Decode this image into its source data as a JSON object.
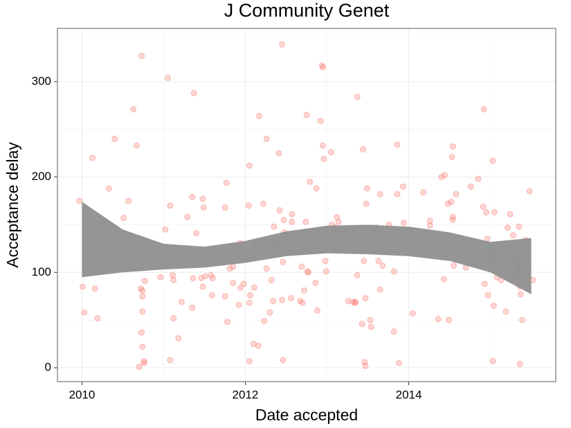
{
  "chart_data": {
    "type": "scatter",
    "title": "J Community Genet",
    "x_label": "Date accepted",
    "y_label": "Acceptance delay",
    "xlim": [
      2009.7,
      2015.8
    ],
    "ylim": [
      -14.5,
      355.8
    ],
    "xticks": [
      2010,
      2012,
      2014
    ],
    "yticks": [
      0,
      100,
      200,
      300
    ],
    "minor_xticks": [
      2011,
      2013,
      2015
    ],
    "minor_yticks": [
      50,
      150,
      250,
      350
    ],
    "grid": true,
    "point_color": "#f8766d",
    "band_color": "#8f8f8f",
    "x": [
      2009.97,
      2010.01,
      2010.03,
      2010.13,
      2010.14,
      2010.16,
      2010.19,
      2010.24,
      2010.33,
      2010.4,
      2010.51,
      2010.57,
      2010.57,
      2010.58,
      2010.63,
      2010.67,
      2010.7,
      2010.73,
      2010.72,
      2010.73,
      2010.74,
      2010.74,
      2010.74,
      2010.74,
      2010.76,
      2010.76,
      2010.77,
      2010.88,
      2010.96,
      2011.02,
      2011.05,
      2011.06,
      2011.08,
      2011.08,
      2011.08,
      2011.11,
      2011.12,
      2011.12,
      2011.18,
      2011.22,
      2011.29,
      2011.35,
      2011.36,
      2011.37,
      2011.35,
      2011.4,
      2011.46,
      2011.48,
      2011.49,
      2011.5,
      2011.48,
      2011.51,
      2011.56,
      2011.58,
      2011.6,
      2011.59,
      2011.75,
      2011.77,
      2011.75,
      2011.78,
      2011.81,
      2011.85,
      2011.85,
      2011.92,
      2011.94,
      2011.94,
      2011.98,
      2012.04,
      2012.05,
      2012.05,
      2012.05,
      2012.06,
      2012.1,
      2012.11,
      2012.12,
      2012.16,
      2012.17,
      2012.22,
      2012.23,
      2012.26,
      2012.26,
      2012.3,
      2012.32,
      2012.34,
      2012.35,
      2012.38,
      2012.39,
      2012.41,
      2012.42,
      2012.45,
      2012.45,
      2012.46,
      2012.46,
      2012.47,
      2012.48,
      2012.54,
      2012.56,
      2012.57,
      2012.57,
      2012.67,
      2012.67,
      2012.69,
      2012.7,
      2012.72,
      2012.74,
      2012.75,
      2012.76,
      2012.77,
      2012.79,
      2012.88,
      2012.86,
      2012.87,
      2012.92,
      2012.94,
      2012.95,
      2012.95,
      2012.96,
      2012.98,
      2012.99,
      2013.05,
      2013.06,
      2013.1,
      2013.11,
      2013.12,
      2013.13,
      2013.14,
      2013.26,
      2013.32,
      2013.33,
      2013.34,
      2013.35,
      2013.37,
      2013.37,
      2013.43,
      2013.44,
      2013.45,
      2013.46,
      2013.47,
      2013.47,
      2013.48,
      2013.49,
      2013.53,
      2013.53,
      2013.54,
      2013.56,
      2013.6,
      2013.6,
      2013.63,
      2013.65,
      2013.65,
      2013.68,
      2013.76,
      2013.82,
      2013.82,
      2013.86,
      2013.86,
      2013.87,
      2013.88,
      2013.93,
      2013.94,
      2013.98,
      2014.02,
      2014.05,
      2014.18,
      2014.18,
      2014.26,
      2014.26,
      2014.36,
      2014.4,
      2014.44,
      2014.43,
      2014.48,
      2014.49,
      2014.52,
      2014.53,
      2014.54,
      2014.54,
      2014.54,
      2014.53,
      2014.55,
      2014.58,
      2014.7,
      2014.76,
      2014.85,
      2014.92,
      2014.91,
      2014.93,
      2014.95,
      2014.96,
      2014.97,
      2015.03,
      2015.03,
      2015.04,
      2015.03,
      2015.05,
      2015.05,
      2015.06,
      2015.08,
      2015.13,
      2015.19,
      2015.19,
      2015.21,
      2015.24,
      2015.25,
      2015.26,
      2015.28,
      2015.29,
      2015.29,
      2015.31,
      2015.32,
      2015.35,
      2015.35,
      2015.35,
      2015.35,
      2015.36,
      2015.36,
      2015.36,
      2015.37,
      2015.39,
      2015.43,
      2015.48,
      2015.52
    ],
    "values": [
      175,
      85,
      58,
      220,
      141,
      83,
      52,
      149,
      188,
      240,
      157,
      175,
      110,
      110,
      271,
      233,
      1,
      327,
      83,
      37,
      81,
      75,
      22,
      59,
      7,
      5,
      91,
      107,
      95,
      145,
      304,
      126,
      109,
      170,
      8,
      97,
      92,
      52,
      31,
      69,
      158,
      63,
      94,
      288,
      179,
      141,
      94,
      177,
      168,
      120,
      85,
      96,
      113,
      97,
      94,
      76,
      168,
      194,
      75,
      48,
      104,
      106,
      89,
      66,
      84,
      131,
      88,
      170,
      212,
      68,
      7,
      76,
      25,
      84,
      129,
      23,
      264,
      172,
      49,
      240,
      104,
      58,
      92,
      70,
      148,
      129,
      126,
      225,
      165,
      339,
      71,
      8,
      111,
      155,
      142,
      140,
      73,
      161,
      153,
      70,
      134,
      106,
      68,
      81,
      153,
      265,
      101,
      100,
      195,
      60,
      89,
      188,
      259,
      317,
      315,
      233,
      219,
      112,
      101,
      226,
      150,
      147,
      127,
      158,
      142,
      153,
      70,
      69,
      137,
      68,
      69,
      284,
      97,
      46,
      229,
      112,
      6,
      2,
      73,
      172,
      188,
      146,
      50,
      43,
      139,
      147,
      133,
      112,
      182,
      82,
      107,
      150,
      101,
      38,
      234,
      182,
      142,
      5,
      190,
      152,
      131,
      144,
      57,
      184,
      126,
      149,
      154,
      51,
      200,
      202,
      93,
      172,
      50,
      174,
      221,
      232,
      158,
      155,
      124,
      107,
      182,
      105,
      190,
      198,
      271,
      169,
      88,
      163,
      135,
      76,
      123,
      217,
      65,
      7,
      163,
      114,
      117,
      95,
      92,
      118,
      59,
      147,
      161,
      118,
      92,
      139,
      118,
      111,
      97,
      115,
      148,
      106,
      102,
      100,
      88,
      85,
      4,
      77,
      50,
      134,
      185,
      92
    ],
    "band": {
      "x": [
        2010.0,
        2010.5,
        2011.0,
        2011.5,
        2012.0,
        2012.5,
        2013.0,
        2013.5,
        2014.0,
        2014.5,
        2015.0,
        2015.5
      ],
      "lower": [
        95,
        100,
        103,
        105,
        110,
        117,
        120,
        119,
        117,
        112,
        100,
        77
      ],
      "upper": [
        174,
        145,
        130,
        127,
        133,
        143,
        149,
        150,
        148,
        142,
        132,
        136
      ]
    }
  }
}
